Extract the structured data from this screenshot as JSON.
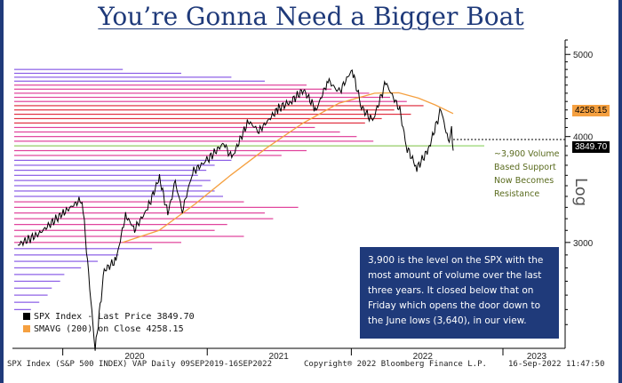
{
  "title": "You’re Gonna Need a Bigger Boat",
  "annotation_box": "3,900 is the level on the SPX with the most amount of volume over the last three years. It closed below that on Friday which opens the door down to the June lows (3,640), in our view.",
  "support_note": "~3,900 Volume Based Support Now Becomes Resistance",
  "axis_scale_label": "Log",
  "footer": {
    "left": "SPX Index (S&P 500 INDEX) VAP  Daily 09SEP2019-16SEP2022",
    "center": "Copyright® 2022 Bloomberg Finance L.P.",
    "right": "16-Sep-2022 11:47:50"
  },
  "colors": {
    "price": "#000000",
    "sma": "#f5a040",
    "vap_blue": "#8a5ce6",
    "vap_pink": "#e0409a",
    "vap_red": "#e03040",
    "support_line": "#a8dd88",
    "title": "#1f3a7a"
  },
  "chart_data": {
    "type": "line",
    "title": "You’re Gonna Need a Bigger Boat",
    "scale": "log",
    "ylim": [
      2250,
      5200
    ],
    "yticks": [
      3000,
      4000,
      5000
    ],
    "x_tick_labels": [
      "2020",
      "2021",
      "2022",
      "2023"
    ],
    "series": [
      {
        "name": "SPX Index - Last Price",
        "last_value_label": "3849.70",
        "points": [
          [
            "2019-09-09",
            2980
          ],
          [
            "2019-11-01",
            3070
          ],
          [
            "2020-01-02",
            3250
          ],
          [
            "2020-02-19",
            3380
          ],
          [
            "2020-03-23",
            2240
          ],
          [
            "2020-04-15",
            2780
          ],
          [
            "2020-05-15",
            2860
          ],
          [
            "2020-06-08",
            3230
          ],
          [
            "2020-07-01",
            3110
          ],
          [
            "2020-08-03",
            3290
          ],
          [
            "2020-09-02",
            3580
          ],
          [
            "2020-09-23",
            3240
          ],
          [
            "2020-10-12",
            3530
          ],
          [
            "2020-10-30",
            3270
          ],
          [
            "2020-11-25",
            3630
          ],
          [
            "2020-12-31",
            3750
          ],
          [
            "2021-02-12",
            3930
          ],
          [
            "2021-03-04",
            3770
          ],
          [
            "2021-04-15",
            4170
          ],
          [
            "2021-05-12",
            4060
          ],
          [
            "2021-07-01",
            4320
          ],
          [
            "2021-08-01",
            4400
          ],
          [
            "2021-09-02",
            4540
          ],
          [
            "2021-10-04",
            4300
          ],
          [
            "2021-11-03",
            4660
          ],
          [
            "2021-12-01",
            4510
          ],
          [
            "2022-01-03",
            4800
          ],
          [
            "2022-01-27",
            4330
          ],
          [
            "2022-02-24",
            4170
          ],
          [
            "2022-03-29",
            4630
          ],
          [
            "2022-05-04",
            4300
          ],
          [
            "2022-05-20",
            3900
          ],
          [
            "2022-06-16",
            3670
          ],
          [
            "2022-07-15",
            3860
          ],
          [
            "2022-08-16",
            4305
          ],
          [
            "2022-09-06",
            3910
          ],
          [
            "2022-09-12",
            4110
          ],
          [
            "2022-09-16",
            3850
          ]
        ]
      },
      {
        "name": "SMAVG (200) on Close",
        "last_value_label": "4258.15",
        "points": [
          [
            "2020-06-01",
            3000
          ],
          [
            "2020-09-01",
            3100
          ],
          [
            "2020-12-01",
            3330
          ],
          [
            "2021-03-01",
            3600
          ],
          [
            "2021-06-01",
            3880
          ],
          [
            "2021-09-01",
            4150
          ],
          [
            "2021-12-01",
            4380
          ],
          [
            "2022-03-01",
            4500
          ],
          [
            "2022-05-01",
            4505
          ],
          [
            "2022-06-20",
            4440
          ],
          [
            "2022-08-01",
            4360
          ],
          [
            "2022-09-16",
            4258
          ]
        ]
      }
    ],
    "volume_at_price": [
      [
        2500,
        4,
        "blue"
      ],
      [
        2550,
        6,
        "blue"
      ],
      [
        2600,
        8,
        "blue"
      ],
      [
        2650,
        9,
        "blue"
      ],
      [
        2700,
        11,
        "blue"
      ],
      [
        2750,
        12,
        "blue"
      ],
      [
        2800,
        16,
        "blue"
      ],
      [
        2850,
        20,
        "blue"
      ],
      [
        2900,
        25,
        "blue"
      ],
      [
        2950,
        33,
        "blue"
      ],
      [
        3000,
        40,
        "pink"
      ],
      [
        3050,
        55,
        "pink"
      ],
      [
        3100,
        48,
        "pink"
      ],
      [
        3150,
        51,
        "pink"
      ],
      [
        3200,
        62,
        "pink"
      ],
      [
        3250,
        60,
        "pink"
      ],
      [
        3300,
        68,
        "pink"
      ],
      [
        3350,
        55,
        "pink"
      ],
      [
        3400,
        50,
        "blue"
      ],
      [
        3450,
        48,
        "blue"
      ],
      [
        3500,
        45,
        "blue"
      ],
      [
        3550,
        47,
        "blue"
      ],
      [
        3600,
        44,
        "blue"
      ],
      [
        3650,
        46,
        "blue"
      ],
      [
        3700,
        48,
        "blue"
      ],
      [
        3750,
        52,
        "blue"
      ],
      [
        3800,
        64,
        "pink"
      ],
      [
        3850,
        70,
        "pink"
      ],
      [
        3900,
        100,
        "red"
      ],
      [
        3950,
        86,
        "pink"
      ],
      [
        4000,
        82,
        "pink"
      ],
      [
        4050,
        78,
        "pink"
      ],
      [
        4100,
        72,
        "pink"
      ],
      [
        4150,
        84,
        "red"
      ],
      [
        4200,
        88,
        "red"
      ],
      [
        4250,
        95,
        "red"
      ],
      [
        4300,
        91,
        "red"
      ],
      [
        4350,
        98,
        "red"
      ],
      [
        4400,
        94,
        "pink"
      ],
      [
        4450,
        90,
        "pink"
      ],
      [
        4500,
        85,
        "pink"
      ],
      [
        4550,
        76,
        "pink"
      ],
      [
        4600,
        70,
        "pink"
      ],
      [
        4650,
        60,
        "blue"
      ],
      [
        4700,
        52,
        "blue"
      ],
      [
        4750,
        40,
        "blue"
      ],
      [
        4800,
        26,
        "blue"
      ]
    ],
    "support_level": 3900,
    "annotations": [
      "~3,900 Volume Based Support Now Becomes Resistance"
    ]
  }
}
